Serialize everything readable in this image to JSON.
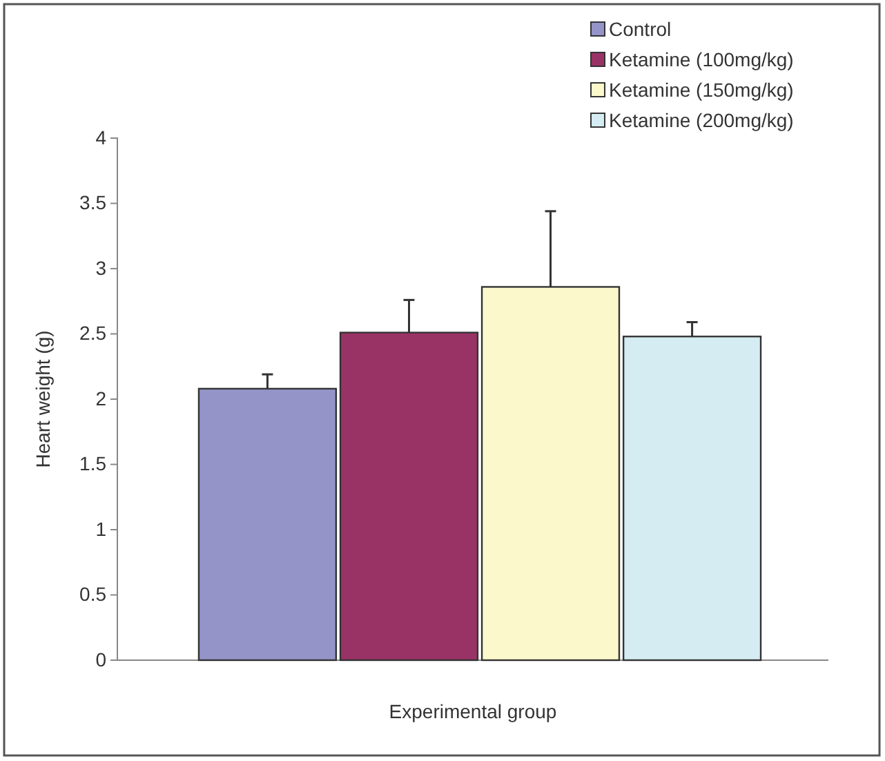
{
  "chart_data": {
    "type": "bar",
    "xlabel": "Experimental group",
    "ylabel": "Heart weight (g)",
    "categories": [
      null
    ],
    "series": [
      {
        "name": "Control",
        "color": "#9494c8",
        "values": [
          2.08
        ],
        "errors": [
          0.11
        ]
      },
      {
        "name": "Ketamine (100mg/kg)",
        "color": "#993366",
        "values": [
          2.51
        ],
        "errors": [
          0.25
        ]
      },
      {
        "name": "Ketamine (150mg/kg)",
        "color": "#fbf8cc",
        "values": [
          2.86
        ],
        "errors": [
          0.58
        ]
      },
      {
        "name": "Ketamine (200mg/kg)",
        "color": "#d4ecf2",
        "values": [
          2.48
        ],
        "errors": [
          0.11
        ]
      }
    ],
    "ylim": [
      0,
      4
    ],
    "yticks": [
      0,
      0.5,
      1,
      1.5,
      2,
      2.5,
      3,
      3.5,
      4
    ],
    "grid": false,
    "legend": "top right"
  }
}
